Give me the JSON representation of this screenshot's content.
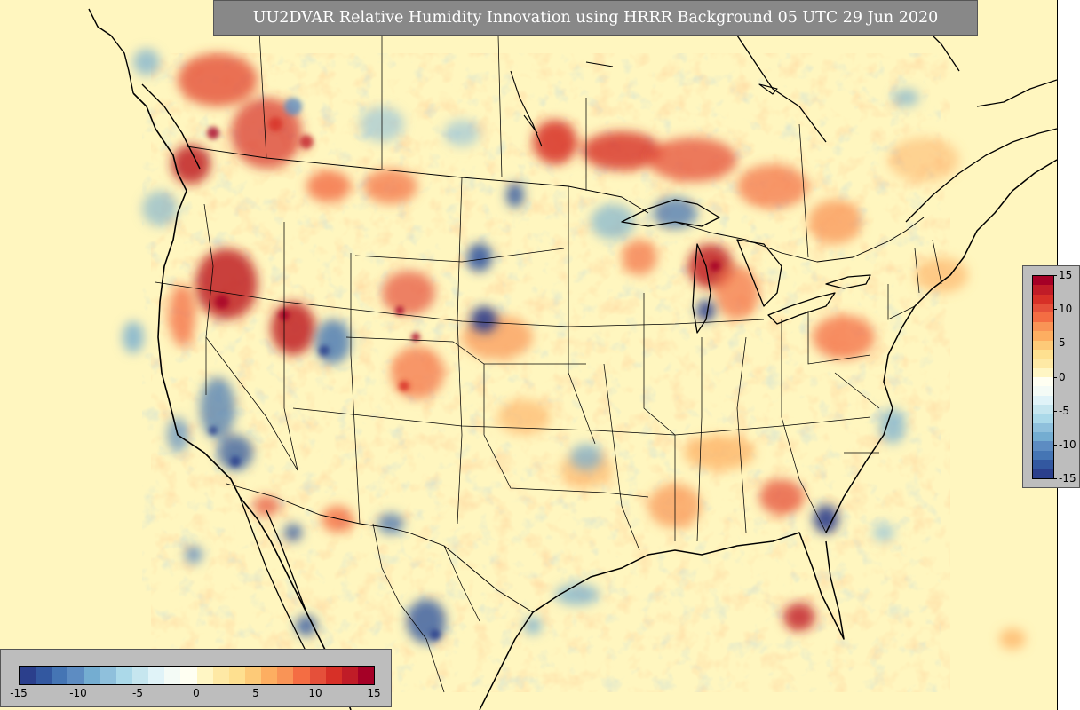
{
  "title": "UU2DVAR Relative Humidity Innovation using HRRR Background 05 UTC 29 Jun 2020",
  "colorbar": {
    "range": [
      -15,
      15
    ],
    "vertical_ticks": [
      "15",
      "10",
      "5",
      "0",
      "-5",
      "-10",
      "-15"
    ],
    "horizontal_ticks": [
      "-15",
      "-10",
      "-5",
      "0",
      "5",
      "10",
      "15"
    ],
    "colors_low_to_high": [
      "#2b3f8c",
      "#3358a0",
      "#4575b4",
      "#5d8cc2",
      "#74add1",
      "#8fc0dc",
      "#abd9e9",
      "#c6e6ef",
      "#e0f3f8",
      "#f4fbf6",
      "#fffff2",
      "#fff6c4",
      "#fee9a5",
      "#fee090",
      "#fdca78",
      "#fdae61",
      "#f99456",
      "#f46d43",
      "#e5503a",
      "#d73027",
      "#c01c27",
      "#a50026"
    ]
  },
  "map": {
    "background_color": "#fff6bf",
    "coastline_color": "#000000",
    "border_color": "#000000"
  }
}
